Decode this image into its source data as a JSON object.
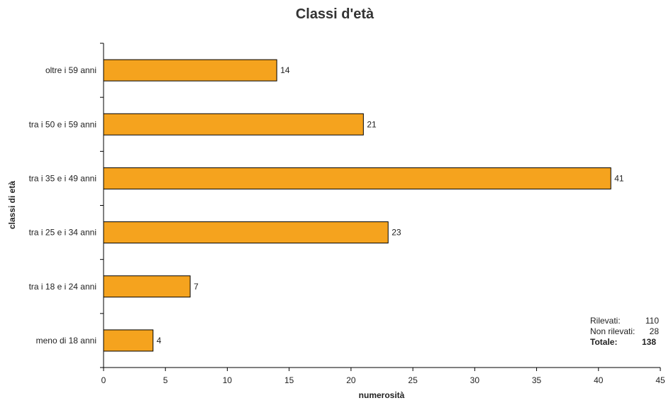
{
  "chart_data": {
    "type": "bar",
    "orientation": "horizontal",
    "title": "Classi d'età",
    "xlabel": "numerosità",
    "ylabel": "classi di età",
    "categories": [
      "meno di 18 anni",
      "tra i 18 e i 24 anni",
      "tra i 25 e i 34 anni",
      "tra i 35 e i 49 anni",
      "tra i 50 e i 59 anni",
      "oltre i 59 anni"
    ],
    "values": [
      4,
      7,
      23,
      41,
      21,
      14
    ],
    "xlim": [
      0,
      45
    ],
    "xticks": [
      0,
      5,
      10,
      15,
      20,
      25,
      30,
      35,
      40,
      45
    ],
    "bar_color": "#F5A31E",
    "grid": false
  },
  "summary": {
    "rilevati_label": "Rilevati:",
    "rilevati_value": "110",
    "non_rilevati_label": "Non rilevati:",
    "non_rilevati_value": "28",
    "totale_label": "Totale:",
    "totale_value": "138"
  }
}
